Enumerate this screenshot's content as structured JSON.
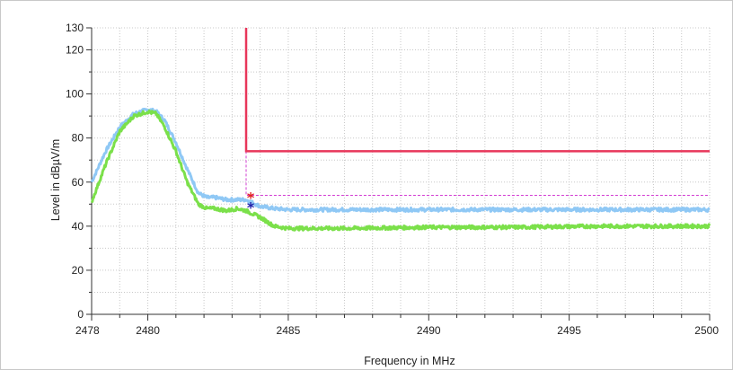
{
  "chart_data": {
    "type": "line",
    "title": "",
    "xlabel": "Frequency in MHz",
    "ylabel": "Level in dBµV/m",
    "xlim": [
      2478,
      2500
    ],
    "ylim": [
      0,
      130
    ],
    "grid": true,
    "x_ticks": [
      2478,
      2480,
      2485,
      2490,
      2495,
      2500
    ],
    "y_ticks": [
      0,
      20,
      40,
      60,
      80,
      100,
      120,
      130
    ],
    "colors": {
      "peak_trace": "#8fc8f5",
      "average_trace": "#7be04a",
      "limit_line": "#e8365a",
      "marker_line": "#d23cd2",
      "peak_marker": "#e02020",
      "average_marker": "#1c1ca8",
      "grid": "#c8c8c8"
    },
    "series": [
      {
        "role": "peak",
        "x": [
          2478.0,
          2478.5,
          2479.0,
          2479.5,
          2480.0,
          2480.3,
          2480.6,
          2481.0,
          2481.4,
          2481.8,
          2482.1,
          2482.4,
          2482.8,
          2483.2,
          2483.5,
          2484.0,
          2484.5,
          2485.0,
          2487.0,
          2490.0,
          2493.0,
          2496.0,
          2498.0,
          2500.0
        ],
        "y": [
          60,
          74,
          85,
          91,
          93,
          92,
          88,
          78,
          66,
          55,
          53,
          53,
          52,
          52,
          52,
          49,
          48,
          47.5,
          47.5,
          47.5,
          47.5,
          47.5,
          47.5,
          47.5
        ]
      },
      {
        "role": "average",
        "x": [
          2478.0,
          2478.5,
          2479.0,
          2479.5,
          2480.0,
          2480.3,
          2480.6,
          2481.0,
          2481.4,
          2481.8,
          2482.1,
          2482.4,
          2482.8,
          2483.2,
          2483.5,
          2484.0,
          2484.5,
          2485.0,
          2487.0,
          2490.0,
          2493.0,
          2496.0,
          2498.0,
          2500.0
        ],
        "y": [
          51,
          68,
          83,
          90,
          92,
          91,
          85,
          74,
          60,
          50,
          48,
          48,
          47,
          48,
          47,
          44,
          40,
          39,
          39,
          39.5,
          39.5,
          40,
          40,
          40
        ]
      }
    ],
    "limit_line": {
      "x": [
        2483.5,
        2483.5,
        2500
      ],
      "y": [
        130,
        74,
        74
      ]
    },
    "marker_line": {
      "x": [
        2483.5,
        2483.5,
        2500
      ],
      "y": [
        74,
        54,
        54
      ]
    },
    "markers": [
      {
        "role": "peak",
        "x": 2483.5,
        "y": 54,
        "symbol": "*"
      },
      {
        "role": "average",
        "x": 2483.5,
        "y": 49.5,
        "symbol": "*"
      }
    ]
  }
}
